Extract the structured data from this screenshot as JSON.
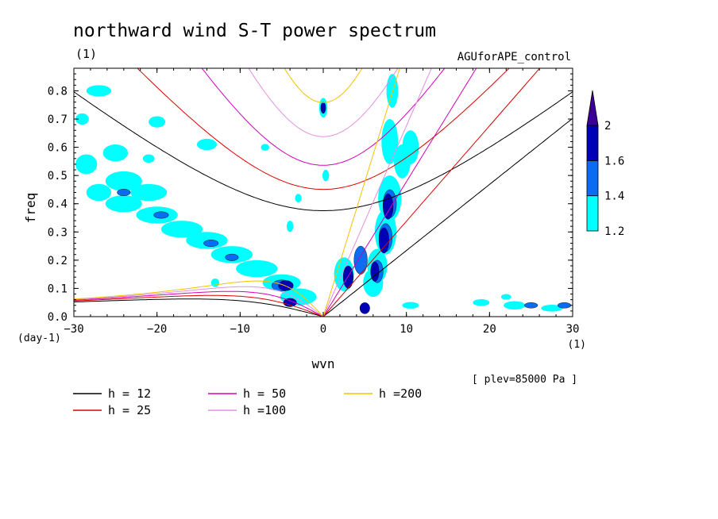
{
  "chart_data": {
    "type": "contour",
    "title": "northward wind S-T power spectrum",
    "subtitle": "(1)",
    "run_label": "AGUforAPE_control",
    "xlabel": "wvn",
    "ylabel": "freq",
    "x_unit": "(1)",
    "y_unit": "(day-1)",
    "level_note": "[ plev=85000 Pa ]",
    "xlim": [
      -30,
      30
    ],
    "ylim": [
      0,
      0.88
    ],
    "xticks": [
      -30,
      -20,
      -10,
      0,
      10,
      20,
      30
    ],
    "xtick_labels": [
      "−30",
      "−20",
      "−10",
      "0",
      "10",
      "20",
      "30"
    ],
    "yticks": [
      0.0,
      0.1,
      0.2,
      0.3,
      0.4,
      0.5,
      0.6,
      0.7,
      0.8
    ],
    "ytick_labels": [
      "0.0",
      "0.1",
      "0.2",
      "0.3",
      "0.4",
      "0.5",
      "0.6",
      "0.7",
      "0.8"
    ],
    "colorbar": {
      "levels": [
        1.2,
        1.4,
        1.6,
        2
      ],
      "labels": [
        "1.2",
        "1.4",
        "1.6",
        "2"
      ],
      "colors": [
        "#00ffff",
        "#0a6cf0",
        "#0000b4",
        "#3c0096"
      ]
    },
    "dispersion_curves": [
      {
        "h": 12,
        "label": "h = 12",
        "color": "#000000"
      },
      {
        "h": 25,
        "label": "h = 25",
        "color": "#dd0000"
      },
      {
        "h": 50,
        "label": "h = 50",
        "color": "#d400b8"
      },
      {
        "h": 100,
        "label": "h =100",
        "color": "#e28fe2"
      },
      {
        "h": 200,
        "label": "h =200",
        "color": "#f2c200"
      }
    ],
    "power_regions": [
      {
        "x": -28.5,
        "y": 0.54,
        "sx": 1.3,
        "sy": 0.035,
        "lev": 0
      },
      {
        "x": -27,
        "y": 0.44,
        "sx": 1.5,
        "sy": 0.03,
        "lev": 0
      },
      {
        "x": -24,
        "y": 0.48,
        "sx": 2.2,
        "sy": 0.035,
        "lev": 0
      },
      {
        "x": -21,
        "y": 0.44,
        "sx": 2.2,
        "sy": 0.03,
        "lev": 0
      },
      {
        "x": -24,
        "y": 0.4,
        "sx": 2.2,
        "sy": 0.03,
        "lev": 0
      },
      {
        "x": -20,
        "y": 0.36,
        "sx": 2.5,
        "sy": 0.03,
        "lev": 0
      },
      {
        "x": -17,
        "y": 0.31,
        "sx": 2.5,
        "sy": 0.03,
        "lev": 0
      },
      {
        "x": -14,
        "y": 0.27,
        "sx": 2.5,
        "sy": 0.03,
        "lev": 0
      },
      {
        "x": -11,
        "y": 0.22,
        "sx": 2.5,
        "sy": 0.03,
        "lev": 0
      },
      {
        "x": -8,
        "y": 0.17,
        "sx": 2.5,
        "sy": 0.03,
        "lev": 0
      },
      {
        "x": -5,
        "y": 0.12,
        "sx": 2.3,
        "sy": 0.03,
        "lev": 0
      },
      {
        "x": -3,
        "y": 0.07,
        "sx": 2.2,
        "sy": 0.03,
        "lev": 0
      },
      {
        "x": -24,
        "y": 0.44,
        "sx": 0.8,
        "sy": 0.012,
        "lev": 1
      },
      {
        "x": -19.5,
        "y": 0.36,
        "sx": 0.9,
        "sy": 0.012,
        "lev": 1
      },
      {
        "x": -13.5,
        "y": 0.26,
        "sx": 0.9,
        "sy": 0.012,
        "lev": 1
      },
      {
        "x": -11,
        "y": 0.21,
        "sx": 0.8,
        "sy": 0.012,
        "lev": 1
      },
      {
        "x": -5,
        "y": 0.11,
        "sx": 1.2,
        "sy": 0.02,
        "lev": 1
      },
      {
        "x": -4.5,
        "y": 0.11,
        "sx": 0.9,
        "sy": 0.018,
        "lev": 2
      },
      {
        "x": -4,
        "y": 0.05,
        "sx": 0.8,
        "sy": 0.015,
        "lev": 2
      },
      {
        "x": -25,
        "y": 0.58,
        "sx": 1.5,
        "sy": 0.03,
        "lev": 0
      },
      {
        "x": -14,
        "y": 0.61,
        "sx": 1.2,
        "sy": 0.02,
        "lev": 0
      },
      {
        "x": -27,
        "y": 0.8,
        "sx": 1.5,
        "sy": 0.02,
        "lev": 0
      },
      {
        "x": -20,
        "y": 0.69,
        "sx": 1.0,
        "sy": 0.02,
        "lev": 0
      },
      {
        "x": -29,
        "y": 0.7,
        "sx": 0.8,
        "sy": 0.02,
        "lev": 0
      },
      {
        "x": 0,
        "y": 0.74,
        "sx": 0.5,
        "sy": 0.035,
        "lev": 0
      },
      {
        "x": 0,
        "y": 0.74,
        "sx": 0.3,
        "sy": 0.02,
        "lev": 2
      },
      {
        "x": 0.3,
        "y": 0.5,
        "sx": 0.4,
        "sy": 0.02,
        "lev": 0
      },
      {
        "x": -4,
        "y": 0.32,
        "sx": 0.4,
        "sy": 0.02,
        "lev": 0
      },
      {
        "x": -3,
        "y": 0.42,
        "sx": 0.4,
        "sy": 0.015,
        "lev": 0
      },
      {
        "x": 8.3,
        "y": 0.8,
        "sx": 0.7,
        "sy": 0.06,
        "lev": 0
      },
      {
        "x": 8,
        "y": 0.62,
        "sx": 1.0,
        "sy": 0.08,
        "lev": 0
      },
      {
        "x": 9.5,
        "y": 0.55,
        "sx": 1.0,
        "sy": 0.06,
        "lev": 0
      },
      {
        "x": 10.5,
        "y": 0.6,
        "sx": 1.0,
        "sy": 0.06,
        "lev": 0
      },
      {
        "x": 8,
        "y": 0.42,
        "sx": 1.4,
        "sy": 0.08,
        "lev": 0
      },
      {
        "x": 7.5,
        "y": 0.3,
        "sx": 1.3,
        "sy": 0.08,
        "lev": 0
      },
      {
        "x": 6.5,
        "y": 0.18,
        "sx": 1.2,
        "sy": 0.06,
        "lev": 0
      },
      {
        "x": 6,
        "y": 0.12,
        "sx": 1.2,
        "sy": 0.05,
        "lev": 0
      },
      {
        "x": 8,
        "y": 0.4,
        "sx": 0.8,
        "sy": 0.05,
        "lev": 1
      },
      {
        "x": 7.5,
        "y": 0.28,
        "sx": 0.8,
        "sy": 0.05,
        "lev": 1
      },
      {
        "x": 6.5,
        "y": 0.16,
        "sx": 0.7,
        "sy": 0.04,
        "lev": 1
      },
      {
        "x": 7.8,
        "y": 0.39,
        "sx": 0.6,
        "sy": 0.045,
        "lev": 2
      },
      {
        "x": 7.3,
        "y": 0.27,
        "sx": 0.6,
        "sy": 0.045,
        "lev": 2
      },
      {
        "x": 6.2,
        "y": 0.16,
        "sx": 0.5,
        "sy": 0.035,
        "lev": 2
      },
      {
        "x": 5,
        "y": 0.03,
        "sx": 0.6,
        "sy": 0.02,
        "lev": 2
      },
      {
        "x": 2.5,
        "y": 0.15,
        "sx": 1.2,
        "sy": 0.06,
        "lev": 0
      },
      {
        "x": 3,
        "y": 0.14,
        "sx": 0.6,
        "sy": 0.04,
        "lev": 2
      },
      {
        "x": 4.5,
        "y": 0.2,
        "sx": 0.8,
        "sy": 0.05,
        "lev": 1
      },
      {
        "x": 19,
        "y": 0.05,
        "sx": 1.0,
        "sy": 0.012,
        "lev": 0
      },
      {
        "x": 23,
        "y": 0.04,
        "sx": 1.3,
        "sy": 0.015,
        "lev": 0
      },
      {
        "x": 27.5,
        "y": 0.03,
        "sx": 1.3,
        "sy": 0.012,
        "lev": 0
      },
      {
        "x": 25,
        "y": 0.04,
        "sx": 0.8,
        "sy": 0.01,
        "lev": 1
      },
      {
        "x": 29,
        "y": 0.04,
        "sx": 0.8,
        "sy": 0.01,
        "lev": 1
      },
      {
        "x": 10.5,
        "y": 0.04,
        "sx": 1.0,
        "sy": 0.012,
        "lev": 0
      },
      {
        "x": -21,
        "y": 0.56,
        "sx": 0.7,
        "sy": 0.015,
        "lev": 0
      },
      {
        "x": 22,
        "y": 0.07,
        "sx": 0.6,
        "sy": 0.01,
        "lev": 0
      },
      {
        "x": -7,
        "y": 0.6,
        "sx": 0.5,
        "sy": 0.012,
        "lev": 0
      },
      {
        "x": -13,
        "y": 0.12,
        "sx": 0.5,
        "sy": 0.015,
        "lev": 0
      }
    ]
  }
}
